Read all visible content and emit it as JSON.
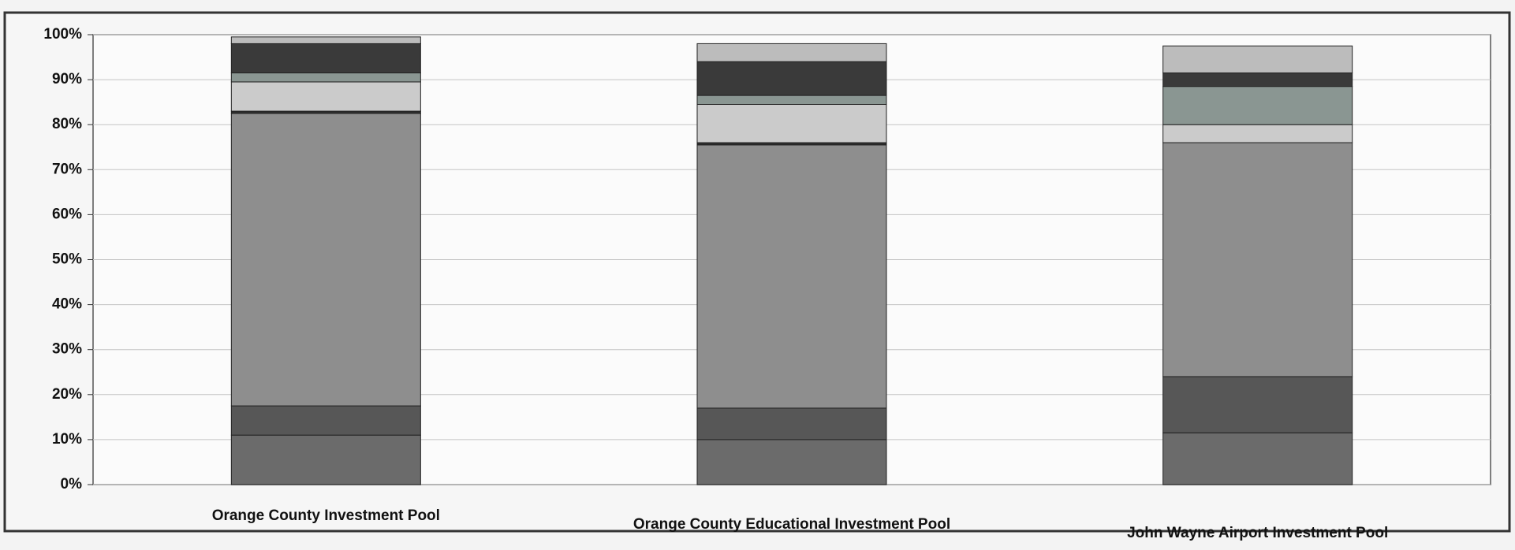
{
  "chart_data": {
    "type": "stacked_bar",
    "categories": [
      "Orange County Investment Pool",
      "Orange County Educational Investment Pool",
      "John Wayne Airport Investment Pool"
    ],
    "series": [
      {
        "color": "#6b6b6b",
        "values": [
          11,
          10,
          11.5
        ]
      },
      {
        "color": "#575757",
        "values": [
          6.5,
          7,
          12.5
        ]
      },
      {
        "color": "#8e8e8e",
        "values": [
          65,
          58.5,
          52
        ]
      },
      {
        "color": "#2e2e2e",
        "values": [
          0.5,
          0.5,
          0
        ]
      },
      {
        "color": "#cbcbcb",
        "values": [
          6.5,
          8.5,
          4
        ]
      },
      {
        "color": "#8a9692",
        "values": [
          2,
          2,
          8.5
        ]
      },
      {
        "color": "#3a3a3a",
        "values": [
          6.5,
          7.5,
          3
        ]
      },
      {
        "color": "#bcbcbc",
        "values": [
          1.5,
          4,
          6
        ]
      }
    ],
    "ylim": [
      0,
      100
    ],
    "yticks": [
      {
        "value": 0,
        "label": "0%"
      },
      {
        "value": 10,
        "label": "10%"
      },
      {
        "value": 20,
        "label": "20%"
      },
      {
        "value": 30,
        "label": "30%"
      },
      {
        "value": 40,
        "label": "40%"
      },
      {
        "value": 50,
        "label": "50%"
      },
      {
        "value": 60,
        "label": "60%"
      },
      {
        "value": 70,
        "label": "70%"
      },
      {
        "value": 80,
        "label": "80%"
      },
      {
        "value": 90,
        "label": "90%"
      },
      {
        "value": 100,
        "label": "100%"
      }
    ],
    "grid": true
  }
}
